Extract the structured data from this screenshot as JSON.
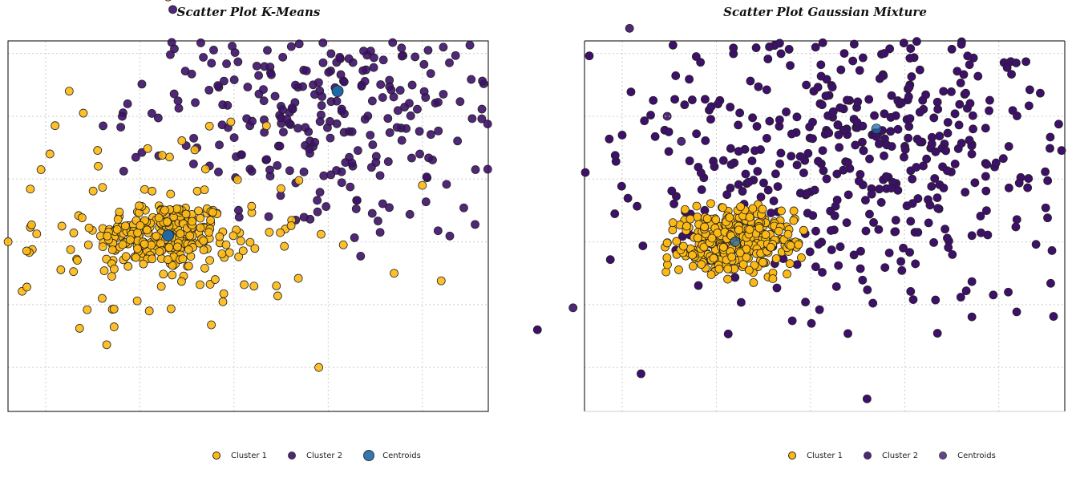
{
  "colors": {
    "cluster1": "#FDB913",
    "cluster2": "#3E0F6B",
    "centroid_kmeans": "#1F68A6",
    "centroid_gmm": "#4C237A",
    "grid": "#cccccc"
  },
  "chart_data": [
    {
      "type": "scatter",
      "title": "Scatter Plot K-Means",
      "xlabel": "",
      "ylabel": "",
      "grid": true,
      "legend": "bottom",
      "legend_entries": [
        "Cluster 1",
        "Cluster 2",
        "Centroids"
      ],
      "seed": 12345,
      "series": [
        {
          "name": "Cluster 1",
          "count": 340,
          "color": "#FDB913",
          "outliers": [
            [
              -1.2,
              -0.72
            ],
            [
              -1.15,
              0.27
            ],
            [
              -1.05,
              1.15
            ],
            [
              -0.9,
              1.85
            ],
            [
              -0.75,
              2.4
            ],
            [
              -0.6,
              2.05
            ],
            [
              -0.4,
              -0.9
            ],
            [
              0.1,
              -1.1
            ],
            [
              0.8,
              -0.6
            ],
            [
              1.45,
              -0.7
            ],
            [
              1.9,
              -2.0
            ],
            [
              2.7,
              -0.5
            ],
            [
              3.2,
              -0.62
            ],
            [
              3.0,
              0.9
            ],
            [
              0.3,
              3.9
            ]
          ]
        },
        {
          "name": "Cluster 2",
          "count": 400,
          "color": "#3E0F6B",
          "outliers": [
            [
              3.5,
              7.6
            ],
            [
              4.4,
              6.9
            ],
            [
              4.8,
              5.4
            ],
            [
              5.2,
              3.4
            ],
            [
              5.6,
              2.0
            ],
            [
              5.75,
              1.6
            ],
            [
              4.6,
              -1.05
            ],
            [
              0.6,
              4.6
            ],
            [
              0.35,
              3.7
            ]
          ]
        },
        {
          "name": "Centroids",
          "color": "#1F68A6",
          "points": [
            [
              0.3,
              0.1
            ],
            [
              2.1,
              2.4
            ]
          ]
        }
      ]
    },
    {
      "type": "scatter",
      "title": "Scatter Plot Gaussian Mixture",
      "xlabel": "",
      "ylabel": "",
      "grid": true,
      "legend": "bottom",
      "legend_entries": [
        "Cluster 1",
        "Cluster 2",
        "Centroids"
      ],
      "seed": 777,
      "series": [
        {
          "name": "Cluster 1",
          "count": 380,
          "color": "#FDB913"
        },
        {
          "name": "Cluster 2",
          "count": 520,
          "color": "#3E0F6B",
          "outliers": [
            [
              -1.9,
              -1.4
            ],
            [
              -1.0,
              1.7
            ],
            [
              2.3,
              7.6
            ],
            [
              3.2,
              7.3
            ],
            [
              4.5,
              4.1
            ],
            [
              3.1,
              -0.8
            ],
            [
              5.6,
              2.8
            ],
            [
              5.6,
              3.4
            ],
            [
              -0.8,
              -2.1
            ],
            [
              1.6,
              -2.5
            ]
          ]
        },
        {
          "name": "Centroids",
          "color": "#4C237A",
          "points": [
            [
              0.2,
              0.0
            ],
            [
              1.7,
              1.8
            ]
          ]
        }
      ]
    }
  ]
}
